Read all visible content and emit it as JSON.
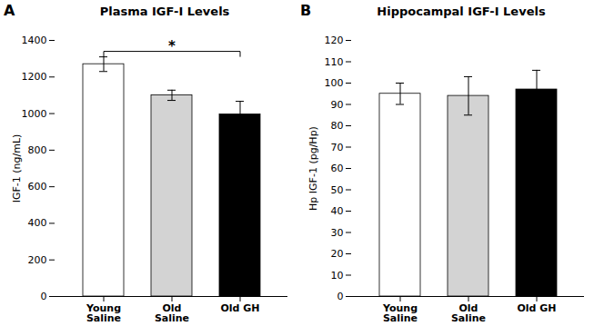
{
  "chart_data": [
    {
      "type": "bar",
      "title": "Plasma IGF-I Levels",
      "categories": [
        "Young\nSaline",
        "Old\nSaline",
        "Old GH"
      ],
      "values": [
        1270,
        1100,
        995
      ],
      "errors": [
        40,
        28,
        72
      ],
      "colors": [
        "white",
        "#d3d3d3",
        "black"
      ],
      "ylabel": "IGF-1 (ng/mL)",
      "ylim": [
        0,
        1400
      ],
      "yticks": [
        0,
        200,
        400,
        600,
        800,
        1000,
        1200,
        1400
      ],
      "grid": false,
      "annotations": [
        {
          "text": "A"
        },
        {
          "text": "*",
          "x1": "Young\nSaline",
          "x2": "Old GH",
          "y": 1340
        }
      ]
    },
    {
      "type": "bar",
      "title": "Hippocampal IGF-I Levels",
      "categories": [
        "Young\nSaline",
        "Old\nSaline",
        "Old GH"
      ],
      "values": [
        95,
        94,
        97
      ],
      "errors": [
        5,
        9,
        9
      ],
      "colors": [
        "white",
        "#d3d3d3",
        "black"
      ],
      "ylabel": "Hp IGF-1 (pg/Hp)",
      "ylim": [
        0,
        120
      ],
      "yticks": [
        0,
        10,
        20,
        30,
        40,
        50,
        60,
        70,
        80,
        90,
        100,
        110,
        120
      ],
      "grid": false,
      "annotations": [
        {
          "text": "B"
        }
      ]
    }
  ]
}
